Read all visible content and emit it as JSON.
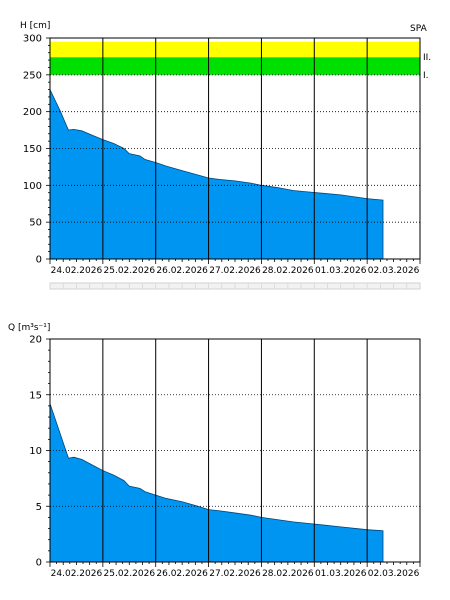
{
  "chart_data": [
    {
      "type": "area",
      "ylabel": "H [cm]",
      "station": "SPA",
      "ylim": [
        0,
        300
      ],
      "yticks": [
        0,
        50,
        100,
        150,
        200,
        250,
        300
      ],
      "x_labels": [
        "24.02.2026",
        "25.02.2026",
        "26.02.2026",
        "27.02.2026",
        "28.02.2026",
        "01.03.2026",
        "02.03.2026"
      ],
      "x_range_days": [
        0,
        7
      ],
      "grid": true,
      "fill_color": "#0095f0",
      "bands": [
        {
          "name": "II.",
          "from": 250,
          "to": 274,
          "color": "#00e000"
        },
        {
          "name": "",
          "from": 274,
          "to": 295,
          "color": "#ffff00"
        }
      ],
      "band_labels": [
        {
          "text": "II.",
          "value": 274
        },
        {
          "text": "I.",
          "value": 250
        }
      ],
      "series": [
        {
          "x": [
            0,
            0.1,
            0.2,
            0.3,
            0.35,
            0.45,
            0.6,
            0.8,
            1.0,
            1.2,
            1.4,
            1.5,
            1.7,
            1.8,
            2.0,
            2.2,
            2.5,
            2.8,
            3.0,
            3.2,
            3.5,
            3.8,
            4.0,
            4.3,
            4.6,
            4.9,
            5.2,
            5.5,
            5.8,
            6.0,
            6.3
          ],
          "y": [
            230,
            215,
            200,
            183,
            175,
            176,
            174,
            168,
            162,
            157,
            150,
            143,
            140,
            135,
            131,
            126,
            120,
            114,
            110,
            108,
            106,
            103,
            100,
            97,
            93,
            91,
            89,
            87,
            84,
            82,
            80
          ]
        }
      ]
    },
    {
      "type": "area",
      "ylabel": "Q [m³s⁻¹]",
      "ylim": [
        0,
        20
      ],
      "yticks": [
        0,
        5,
        10,
        15,
        20
      ],
      "x_labels": [
        "24.02.2026",
        "25.02.2026",
        "26.02.2026",
        "27.02.2026",
        "28.02.2026",
        "01.03.2026",
        "02.03.2026"
      ],
      "x_range_days": [
        0,
        7
      ],
      "grid": true,
      "fill_color": "#0095f0",
      "series": [
        {
          "x": [
            0,
            0.1,
            0.2,
            0.3,
            0.35,
            0.45,
            0.6,
            0.8,
            1.0,
            1.2,
            1.4,
            1.5,
            1.7,
            1.8,
            2.0,
            2.2,
            2.5,
            2.8,
            3.0,
            3.2,
            3.5,
            3.8,
            4.0,
            4.3,
            4.6,
            4.9,
            5.2,
            5.5,
            5.8,
            6.0,
            6.3
          ],
          "y": [
            14.2,
            12.8,
            11.4,
            10.0,
            9.3,
            9.4,
            9.2,
            8.7,
            8.2,
            7.8,
            7.3,
            6.8,
            6.6,
            6.3,
            6.0,
            5.7,
            5.4,
            5.0,
            4.7,
            4.6,
            4.4,
            4.2,
            4.0,
            3.8,
            3.6,
            3.45,
            3.3,
            3.15,
            3.0,
            2.9,
            2.8
          ]
        }
      ]
    }
  ]
}
